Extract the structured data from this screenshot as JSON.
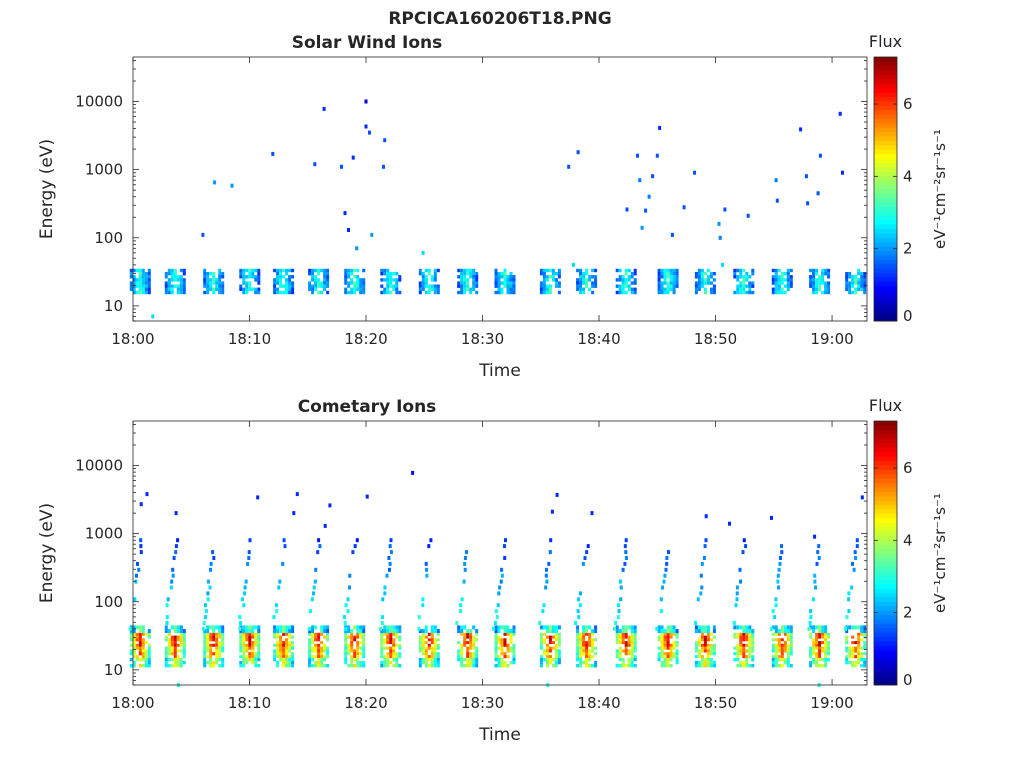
{
  "figure_title": "RPCICA160206T18.PNG",
  "colors": {
    "axis": "#262626",
    "scale": [
      "#00007f",
      "#0000ff",
      "#007fff",
      "#00ffff",
      "#7fff7f",
      "#ffff00",
      "#ff7f00",
      "#ff0000",
      "#7f0000"
    ]
  },
  "chart_data": [
    {
      "type": "heatmap",
      "title": "Solar Wind Ions",
      "xlabel": "Time",
      "ylabel": "Energy (eV)",
      "xticks": [
        "18:00",
        "18:10",
        "18:20",
        "18:30",
        "18:40",
        "18:50",
        "19:00"
      ],
      "xlim_minutes": [
        0,
        63
      ],
      "yscale": "log",
      "yticks": [
        "10",
        "100",
        "1000",
        "10000"
      ],
      "ylim": [
        6,
        45000
      ],
      "colorbar": {
        "label": "Flux",
        "unit": "eV⁻¹cm⁻²sr⁻¹s⁻¹",
        "ticks": [
          "0",
          "2",
          "4",
          "6"
        ],
        "range": [
          0,
          7.3
        ]
      },
      "pulse_times_minutes": [
        0.5,
        3.5,
        6.8,
        9.9,
        12.8,
        15.8,
        18.9,
        22.0,
        25.3,
        28.6,
        31.8,
        35.7,
        38.8,
        42.2,
        45.8,
        49.0,
        52.3,
        55.6,
        58.8,
        61.9
      ],
      "bands": [
        {
          "emin": 15,
          "emax": 35,
          "value": 3.0
        }
      ],
      "scatter": [
        {
          "t": 1.7,
          "e": 7,
          "v": 2.5
        },
        {
          "t": 6.0,
          "e": 110,
          "v": 1.5
        },
        {
          "t": 7.0,
          "e": 650,
          "v": 2.0
        },
        {
          "t": 8.5,
          "e": 580,
          "v": 2.0
        },
        {
          "t": 12.0,
          "e": 1700,
          "v": 1.5
        },
        {
          "t": 15.6,
          "e": 1200,
          "v": 1.5
        },
        {
          "t": 16.4,
          "e": 7800,
          "v": 1.2
        },
        {
          "t": 17.9,
          "e": 1100,
          "v": 1.5
        },
        {
          "t": 18.2,
          "e": 230,
          "v": 1.2
        },
        {
          "t": 18.5,
          "e": 130,
          "v": 1.2
        },
        {
          "t": 18.9,
          "e": 1500,
          "v": 1.2
        },
        {
          "t": 19.2,
          "e": 70,
          "v": 2.0
        },
        {
          "t": 20.0,
          "e": 10000,
          "v": 0.8
        },
        {
          "t": 20.0,
          "e": 4300,
          "v": 1.2
        },
        {
          "t": 20.3,
          "e": 3500,
          "v": 1.5
        },
        {
          "t": 20.5,
          "e": 110,
          "v": 2.0
        },
        {
          "t": 21.5,
          "e": 1100,
          "v": 1.5
        },
        {
          "t": 21.6,
          "e": 2700,
          "v": 1.5
        },
        {
          "t": 24.9,
          "e": 60,
          "v": 2.5
        },
        {
          "t": 37.4,
          "e": 1100,
          "v": 1.5
        },
        {
          "t": 37.8,
          "e": 40,
          "v": 2.5
        },
        {
          "t": 38.2,
          "e": 1800,
          "v": 1.5
        },
        {
          "t": 42.4,
          "e": 260,
          "v": 1.5
        },
        {
          "t": 43.3,
          "e": 1600,
          "v": 1.5
        },
        {
          "t": 43.5,
          "e": 700,
          "v": 1.8
        },
        {
          "t": 43.7,
          "e": 140,
          "v": 2.0
        },
        {
          "t": 44.0,
          "e": 250,
          "v": 1.5
        },
        {
          "t": 44.3,
          "e": 400,
          "v": 1.8
        },
        {
          "t": 44.6,
          "e": 800,
          "v": 1.5
        },
        {
          "t": 45.0,
          "e": 1600,
          "v": 1.5
        },
        {
          "t": 45.2,
          "e": 4100,
          "v": 1.2
        },
        {
          "t": 46.3,
          "e": 110,
          "v": 1.5
        },
        {
          "t": 47.3,
          "e": 280,
          "v": 1.5
        },
        {
          "t": 48.2,
          "e": 900,
          "v": 1.5
        },
        {
          "t": 50.3,
          "e": 160,
          "v": 2.0
        },
        {
          "t": 50.4,
          "e": 100,
          "v": 1.8
        },
        {
          "t": 50.6,
          "e": 40,
          "v": 2.5
        },
        {
          "t": 50.8,
          "e": 260,
          "v": 1.5
        },
        {
          "t": 52.8,
          "e": 210,
          "v": 1.5
        },
        {
          "t": 55.2,
          "e": 700,
          "v": 1.8
        },
        {
          "t": 55.3,
          "e": 350,
          "v": 1.5
        },
        {
          "t": 57.3,
          "e": 3900,
          "v": 1.2
        },
        {
          "t": 57.8,
          "e": 800,
          "v": 1.5
        },
        {
          "t": 57.9,
          "e": 320,
          "v": 1.5
        },
        {
          "t": 58.8,
          "e": 450,
          "v": 1.5
        },
        {
          "t": 59.0,
          "e": 1600,
          "v": 1.5
        },
        {
          "t": 60.7,
          "e": 6600,
          "v": 1.2
        },
        {
          "t": 60.9,
          "e": 900,
          "v": 1.2
        }
      ]
    },
    {
      "type": "heatmap",
      "title": "Cometary Ions",
      "xlabel": "Time",
      "ylabel": "Energy (eV)",
      "xticks": [
        "18:00",
        "18:10",
        "18:20",
        "18:30",
        "18:40",
        "18:50",
        "19:00"
      ],
      "xlim_minutes": [
        0,
        63
      ],
      "yscale": "log",
      "yticks": [
        "10",
        "100",
        "1000",
        "10000"
      ],
      "ylim": [
        6,
        45000
      ],
      "colorbar": {
        "label": "Flux",
        "unit": "eV⁻¹cm⁻²sr⁻¹s⁻¹",
        "ticks": [
          "0",
          "2",
          "4",
          "6"
        ],
        "range": [
          0,
          7.3
        ]
      },
      "pulse_times_minutes": [
        0.5,
        3.5,
        6.8,
        9.9,
        12.8,
        15.8,
        18.9,
        22.0,
        25.3,
        28.6,
        31.8,
        35.7,
        38.8,
        42.2,
        45.8,
        49.0,
        52.3,
        55.6,
        58.8,
        61.9
      ],
      "bands": [
        {
          "emin": 22,
          "emax": 35,
          "value": 6.5
        },
        {
          "emin": 15,
          "emax": 22,
          "value": 5.8
        },
        {
          "emin": 11,
          "emax": 15,
          "value": 4.5
        },
        {
          "emin": 35,
          "emax": 45,
          "value": 3.5
        }
      ],
      "dispersion": {
        "emin": 40,
        "emax": 800,
        "value_low": 3.0,
        "value_high": 1.3
      },
      "scatter": [
        {
          "t": 0.7,
          "e": 2700,
          "v": 1.2
        },
        {
          "t": 1.2,
          "e": 3800,
          "v": 1.2
        },
        {
          "t": 3.7,
          "e": 2000,
          "v": 1.2
        },
        {
          "t": 3.9,
          "e": 6,
          "v": 3.0
        },
        {
          "t": 10.7,
          "e": 3400,
          "v": 1.2
        },
        {
          "t": 13.8,
          "e": 2000,
          "v": 1.2
        },
        {
          "t": 14.1,
          "e": 3800,
          "v": 1.2
        },
        {
          "t": 16.5,
          "e": 1300,
          "v": 1.2
        },
        {
          "t": 16.9,
          "e": 2600,
          "v": 1.2
        },
        {
          "t": 20.1,
          "e": 3500,
          "v": 1.2
        },
        {
          "t": 24.0,
          "e": 7800,
          "v": 1.0
        },
        {
          "t": 35.6,
          "e": 6,
          "v": 3.0
        },
        {
          "t": 36.0,
          "e": 2100,
          "v": 1.2
        },
        {
          "t": 36.4,
          "e": 3700,
          "v": 1.2
        },
        {
          "t": 39.4,
          "e": 2000,
          "v": 1.2
        },
        {
          "t": 49.2,
          "e": 1800,
          "v": 1.2
        },
        {
          "t": 51.2,
          "e": 1400,
          "v": 1.2
        },
        {
          "t": 54.8,
          "e": 1700,
          "v": 1.2
        },
        {
          "t": 58.5,
          "e": 900,
          "v": 1.2
        },
        {
          "t": 58.9,
          "e": 6,
          "v": 3.0
        },
        {
          "t": 62.6,
          "e": 3400,
          "v": 1.2
        }
      ]
    }
  ]
}
